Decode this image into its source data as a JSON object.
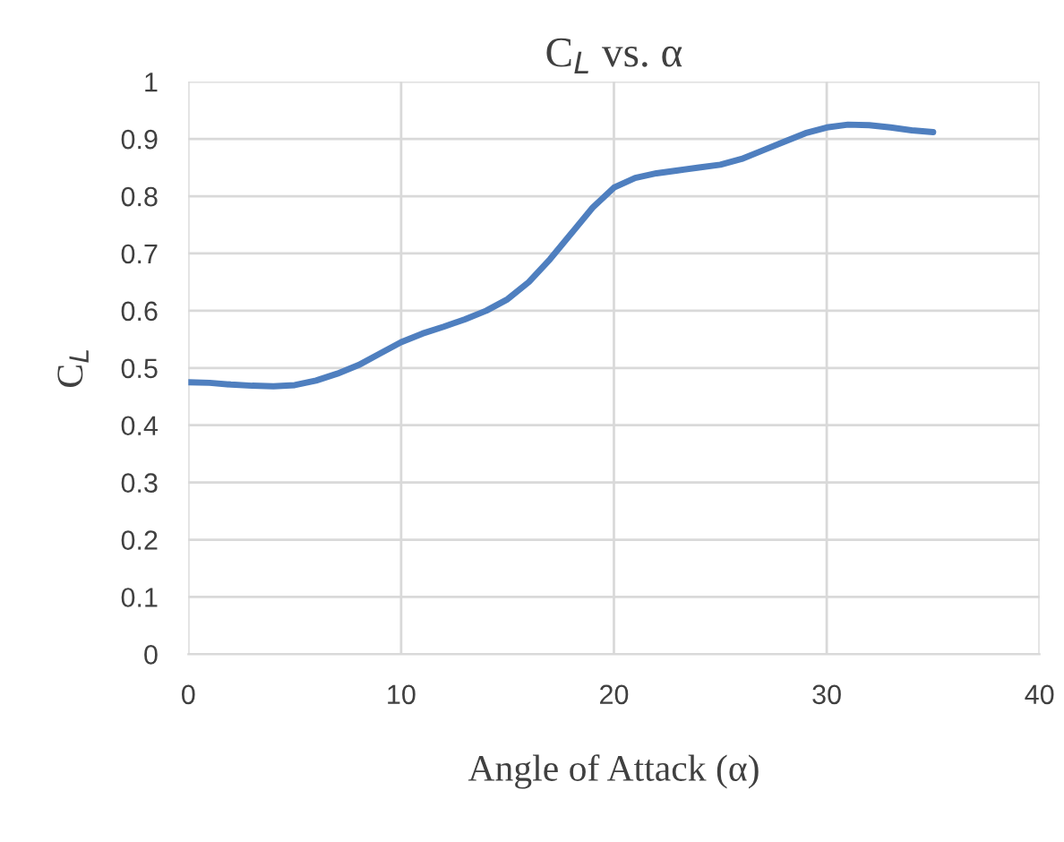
{
  "chart_data": {
    "type": "line",
    "title": "C$_{L}$ vs. α",
    "xlabel": "Angle of Attack (α)",
    "ylabel": "C$_{L}$",
    "x": [
      0,
      1,
      2,
      3,
      4,
      5,
      6,
      7,
      8,
      9,
      10,
      11,
      12,
      13,
      14,
      15,
      16,
      17,
      18,
      19,
      20,
      21,
      22,
      23,
      24,
      25,
      26,
      27,
      28,
      29,
      30,
      31,
      32,
      33,
      34,
      35
    ],
    "series": [
      {
        "color": "#4f7fbf",
        "values": [
          0.475,
          0.474,
          0.471,
          0.469,
          0.468,
          0.47,
          0.478,
          0.49,
          0.505,
          0.525,
          0.545,
          0.56,
          0.572,
          0.585,
          0.6,
          0.62,
          0.65,
          0.69,
          0.735,
          0.78,
          0.815,
          0.832,
          0.84,
          0.845,
          0.85,
          0.855,
          0.865,
          0.88,
          0.895,
          0.91,
          0.92,
          0.925,
          0.924,
          0.92,
          0.915,
          0.912
        ]
      }
    ],
    "xlim": [
      0,
      40
    ],
    "xticks": [
      0,
      10,
      20,
      30,
      40
    ],
    "ylim": [
      0,
      1
    ],
    "yticks": [
      0,
      0.1,
      0.2,
      0.3,
      0.4,
      0.5,
      0.6,
      0.7,
      0.8,
      0.9,
      1
    ],
    "grid": true,
    "marker": "none",
    "line_style": "solid"
  }
}
